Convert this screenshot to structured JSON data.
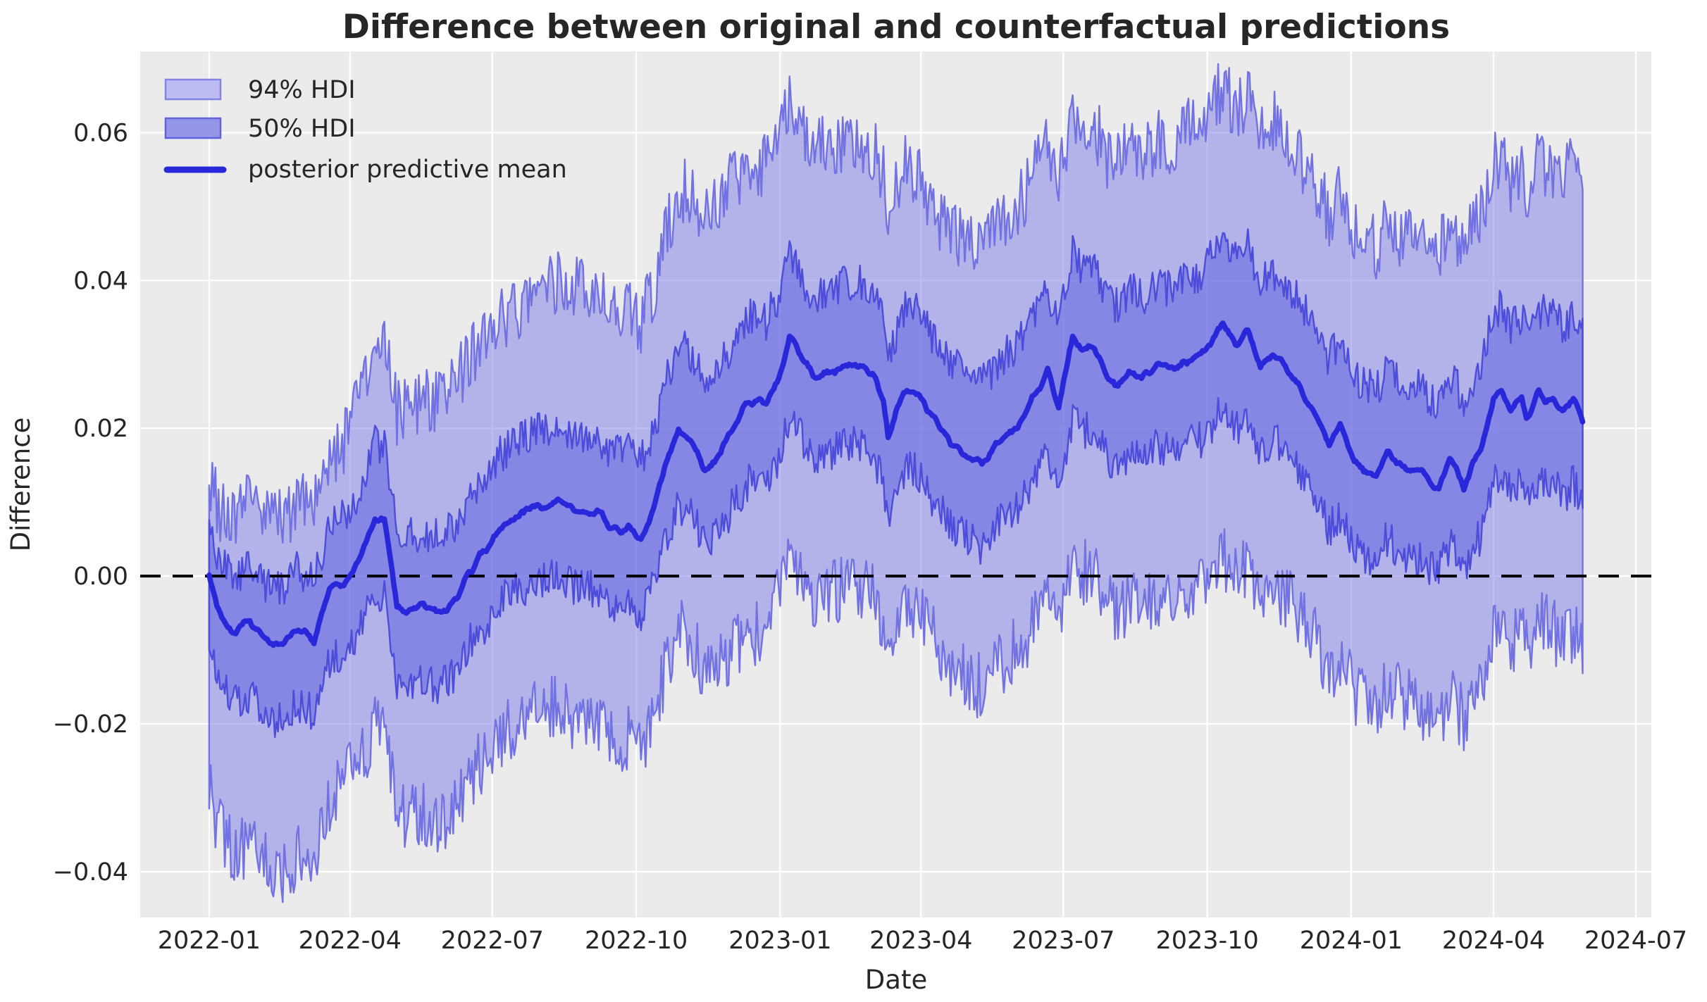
{
  "chart_data": {
    "type": "line",
    "title": "Difference between original and counterfactual predictions",
    "xlabel": "Date",
    "ylabel": "Difference",
    "legend_position": "upper left",
    "grid": true,
    "x_tick_labels": [
      "2022-01",
      "2022-04",
      "2022-07",
      "2022-10",
      "2023-01",
      "2023-04",
      "2023-07",
      "2023-10",
      "2024-01",
      "2024-04",
      "2024-07"
    ],
    "x_tick_days": [
      0,
      90,
      181,
      273,
      365,
      455,
      546,
      638,
      730,
      821,
      912
    ],
    "y_tick_labels": [
      "0.06",
      "0.04",
      "0.02",
      "0.00",
      "−0.02",
      "−0.04"
    ],
    "y_ticks": [
      0.06,
      0.04,
      0.02,
      0.0,
      -0.02,
      -0.04
    ],
    "xlim_days": [
      -44.1,
      921.9
    ],
    "ylim": [
      -0.0462,
      0.071
    ],
    "x_day_zero_date": "2022-01-01",
    "series_day_range": [
      0,
      878
    ],
    "zero_reference_value": 0.0,
    "legend_labels": [
      "94% HDI",
      "50% HDI",
      "posterior predictive mean"
    ],
    "mean_waypoints": {
      "day": [
        0,
        5,
        11,
        17,
        26,
        41,
        48,
        56,
        67,
        77,
        86,
        96,
        106,
        112,
        120,
        128,
        136,
        148,
        158,
        166,
        176,
        186,
        196,
        208,
        221,
        236,
        248,
        258,
        268,
        276,
        284,
        292,
        300,
        308,
        316,
        326,
        336,
        346,
        356,
        366,
        371,
        378,
        386,
        396,
        406,
        414,
        424,
        431,
        434,
        444,
        451,
        461,
        474,
        484,
        494,
        504,
        516,
        522,
        536,
        543,
        552,
        558,
        566,
        574,
        581,
        588,
        596,
        606,
        614,
        624,
        636,
        648,
        656,
        664,
        672,
        680,
        691,
        701,
        708,
        716,
        723,
        732,
        740,
        746,
        753,
        763,
        774,
        786,
        793,
        802,
        814,
        821,
        826,
        832,
        839,
        842,
        850,
        856,
        866,
        872,
        878
      ],
      "value": [
        0.0,
        -0.004,
        -0.0062,
        -0.0075,
        -0.006,
        -0.0098,
        -0.009,
        -0.007,
        -0.0088,
        -0.002,
        -0.001,
        0.002,
        0.008,
        0.0075,
        -0.004,
        -0.0045,
        -0.004,
        -0.005,
        -0.003,
        0.001,
        0.003,
        0.0065,
        0.008,
        0.0095,
        0.01,
        0.009,
        0.0085,
        0.006,
        0.0065,
        0.005,
        0.009,
        0.0155,
        0.02,
        0.0185,
        0.0145,
        0.016,
        0.021,
        0.024,
        0.0235,
        0.028,
        0.0325,
        0.03,
        0.0265,
        0.0275,
        0.0285,
        0.029,
        0.0275,
        0.0236,
        0.0186,
        0.025,
        0.0255,
        0.022,
        0.0182,
        0.016,
        0.015,
        0.018,
        0.02,
        0.0217,
        0.028,
        0.0233,
        0.0325,
        0.0305,
        0.031,
        0.027,
        0.0255,
        0.028,
        0.0265,
        0.0285,
        0.028,
        0.029,
        0.03,
        0.0345,
        0.0315,
        0.033,
        0.0285,
        0.03,
        0.0277,
        0.024,
        0.022,
        0.0178,
        0.02,
        0.0157,
        0.0141,
        0.0134,
        0.0167,
        0.0144,
        0.014,
        0.0119,
        0.016,
        0.0122,
        0.0176,
        0.0243,
        0.0252,
        0.0224,
        0.0239,
        0.0214,
        0.0246,
        0.0239,
        0.0225,
        0.024,
        0.021
      ]
    },
    "band_waypoints": {
      "day": [
        0,
        26,
        56,
        86,
        106,
        136,
        166,
        196,
        226,
        256,
        286,
        316,
        346,
        376,
        406,
        436,
        466,
        496,
        526,
        556,
        586,
        616,
        646,
        676,
        706,
        736,
        766,
        796,
        826,
        856,
        878
      ],
      "u94": [
        0.013,
        0.016,
        0.017,
        0.019,
        0.024,
        0.028,
        0.029,
        0.028,
        0.03,
        0.029,
        0.03,
        0.035,
        0.032,
        0.032,
        0.03,
        0.031,
        0.028,
        0.03,
        0.03,
        0.03,
        0.03,
        0.031,
        0.032,
        0.0315,
        0.031,
        0.0315,
        0.031,
        0.032,
        0.0315,
        0.031,
        0.033
      ],
      "l94": [
        0.029,
        0.03,
        0.031,
        0.027,
        0.028,
        0.028,
        0.028,
        0.028,
        0.028,
        0.029,
        0.028,
        0.027,
        0.032,
        0.029,
        0.03,
        0.03,
        0.03,
        0.03,
        0.03,
        0.03,
        0.031,
        0.031,
        0.032,
        0.0315,
        0.031,
        0.0315,
        0.031,
        0.032,
        0.0315,
        0.031,
        0.031
      ],
      "u50": [
        0.007,
        0.007,
        0.008,
        0.009,
        0.01,
        0.01,
        0.01,
        0.01,
        0.0105,
        0.0105,
        0.0105,
        0.012,
        0.011,
        0.011,
        0.011,
        0.011,
        0.011,
        0.011,
        0.011,
        0.011,
        0.011,
        0.011,
        0.0115,
        0.0115,
        0.0115,
        0.0115,
        0.0115,
        0.0115,
        0.0115,
        0.0115,
        0.0115
      ],
      "l50": [
        0.009,
        0.01,
        0.01,
        0.009,
        0.01,
        0.01,
        0.01,
        0.01,
        0.0105,
        0.0105,
        0.0105,
        0.01,
        0.011,
        0.011,
        0.011,
        0.011,
        0.011,
        0.011,
        0.011,
        0.011,
        0.011,
        0.011,
        0.0115,
        0.0115,
        0.0115,
        0.0115,
        0.0115,
        0.0115,
        0.0115,
        0.0115,
        0.0115
      ]
    },
    "noise": {
      "seed": 12345,
      "mean_amp": 0.0011,
      "mean_smooth": 2,
      "hdi94_amp": 0.0045,
      "hdi50_amp": 0.0026
    },
    "colors": {
      "axes_background": "#ebebeb",
      "gridline": "#ffffff",
      "hdi94_fill": "rgba(123,123,232,0.5)",
      "hdi94_edge": "#7272e2",
      "hdi50_fill": "rgba(89,89,224,0.5)",
      "hdi50_edge": "#4d4ddb",
      "mean_line": "#2828da",
      "zero_line": "#000000",
      "legend94_fill": "#bcbcf2",
      "legend94_edge": "#8484e4",
      "legend50_fill": "#9595e8",
      "legend50_edge": "#6060dd"
    }
  }
}
